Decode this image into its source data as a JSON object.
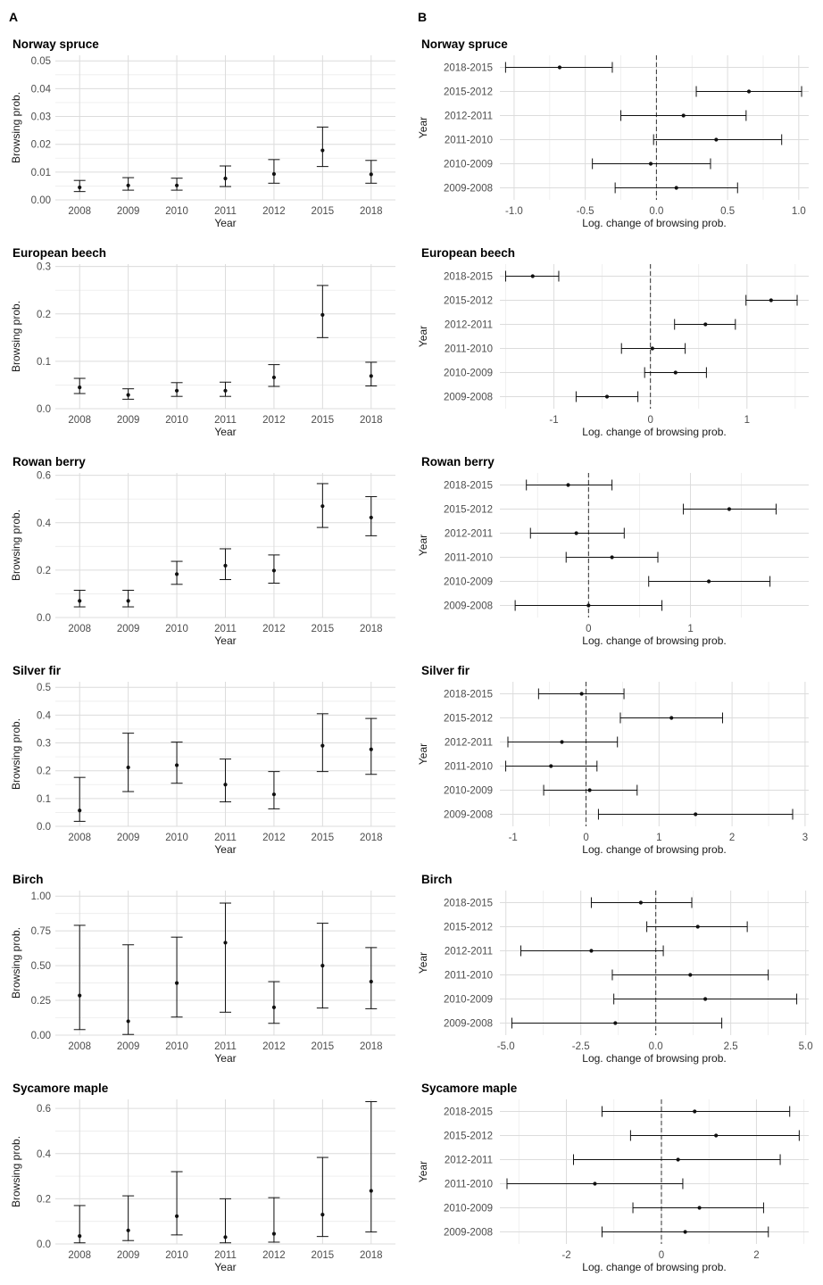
{
  "panel_labels": {
    "a": "A",
    "b": "B"
  },
  "chart_data": [
    {
      "panel": "A",
      "type": "scatter",
      "title": "Norway spruce",
      "xlabel": "Year",
      "ylabel": "Browsing prob.",
      "categories": [
        "2008",
        "2009",
        "2010",
        "2011",
        "2012",
        "2015",
        "2018"
      ],
      "ylim": [
        0,
        0.052
      ],
      "yticks": [
        0,
        0.01,
        0.02,
        0.03,
        0.04,
        0.05
      ],
      "ytick_labels": [
        "0.00",
        "0.01",
        "0.02",
        "0.03",
        "0.04",
        "0.05"
      ],
      "points": [
        {
          "est": 0.0045,
          "lo": 0.003,
          "hi": 0.007
        },
        {
          "est": 0.0052,
          "lo": 0.0035,
          "hi": 0.008
        },
        {
          "est": 0.0052,
          "lo": 0.0035,
          "hi": 0.0078
        },
        {
          "est": 0.0077,
          "lo": 0.0048,
          "hi": 0.0122
        },
        {
          "est": 0.0093,
          "lo": 0.006,
          "hi": 0.0145
        },
        {
          "est": 0.0178,
          "lo": 0.012,
          "hi": 0.0262
        },
        {
          "est": 0.0092,
          "lo": 0.006,
          "hi": 0.0142
        }
      ]
    },
    {
      "panel": "B",
      "type": "forest",
      "title": "Norway spruce",
      "xlabel": "Log. change of browsing prob.",
      "ylabel": "Year",
      "categories": [
        "2018-2015",
        "2015-2012",
        "2012-2011",
        "2011-2010",
        "2010-2009",
        "2009-2008"
      ],
      "xlim": [
        -1.1,
        1.07
      ],
      "xticks": [
        -1.0,
        -0.5,
        0.0,
        0.5,
        1.0
      ],
      "xtick_labels": [
        "-1.0",
        "-0.5",
        "0.0",
        "0.5",
        "1.0"
      ],
      "points": [
        {
          "est": -0.68,
          "lo": -1.06,
          "hi": -0.31
        },
        {
          "est": 0.65,
          "lo": 0.28,
          "hi": 1.02
        },
        {
          "est": 0.19,
          "lo": -0.25,
          "hi": 0.63
        },
        {
          "est": 0.42,
          "lo": -0.02,
          "hi": 0.88
        },
        {
          "est": -0.04,
          "lo": -0.45,
          "hi": 0.38
        },
        {
          "est": 0.14,
          "lo": -0.29,
          "hi": 0.57
        }
      ]
    },
    {
      "panel": "A",
      "type": "scatter",
      "title": "European beech",
      "xlabel": "Year",
      "ylabel": "Browsing prob.",
      "categories": [
        "2008",
        "2009",
        "2010",
        "2011",
        "2012",
        "2015",
        "2018"
      ],
      "ylim": [
        0,
        0.305
      ],
      "yticks": [
        0,
        0.1,
        0.2,
        0.3
      ],
      "ytick_labels": [
        "0.0",
        "0.1",
        "0.2",
        "0.3"
      ],
      "points": [
        {
          "est": 0.045,
          "lo": 0.032,
          "hi": 0.064
        },
        {
          "est": 0.029,
          "lo": 0.02,
          "hi": 0.042
        },
        {
          "est": 0.038,
          "lo": 0.026,
          "hi": 0.055
        },
        {
          "est": 0.038,
          "lo": 0.026,
          "hi": 0.056
        },
        {
          "est": 0.066,
          "lo": 0.047,
          "hi": 0.093
        },
        {
          "est": 0.198,
          "lo": 0.15,
          "hi": 0.26
        },
        {
          "est": 0.069,
          "lo": 0.048,
          "hi": 0.098
        }
      ]
    },
    {
      "panel": "B",
      "type": "forest",
      "title": "European beech",
      "xlabel": "Log. change of browsing prob.",
      "ylabel": "Year",
      "categories": [
        "2018-2015",
        "2015-2012",
        "2012-2011",
        "2011-2010",
        "2010-2009",
        "2009-2008"
      ],
      "xlim": [
        -1.56,
        1.64
      ],
      "xticks": [
        -1,
        0,
        1
      ],
      "xtick_labels": [
        "-1",
        "0",
        "1"
      ],
      "points": [
        {
          "est": -1.22,
          "lo": -1.5,
          "hi": -0.95
        },
        {
          "est": 1.25,
          "lo": 0.99,
          "hi": 1.52
        },
        {
          "est": 0.57,
          "lo": 0.25,
          "hi": 0.88
        },
        {
          "est": 0.02,
          "lo": -0.3,
          "hi": 0.36
        },
        {
          "est": 0.26,
          "lo": -0.06,
          "hi": 0.58
        },
        {
          "est": -0.45,
          "lo": -0.77,
          "hi": -0.13
        }
      ]
    },
    {
      "panel": "A",
      "type": "scatter",
      "title": "Rowan berry",
      "xlabel": "Year",
      "ylabel": "Browsing prob.",
      "categories": [
        "2008",
        "2009",
        "2010",
        "2011",
        "2012",
        "2015",
        "2018"
      ],
      "ylim": [
        0,
        0.61
      ],
      "yticks": [
        0,
        0.2,
        0.4,
        0.6
      ],
      "ytick_labels": [
        "0.0",
        "0.2",
        "0.4",
        "0.6"
      ],
      "points": [
        {
          "est": 0.07,
          "lo": 0.045,
          "hi": 0.115
        },
        {
          "est": 0.07,
          "lo": 0.045,
          "hi": 0.115
        },
        {
          "est": 0.183,
          "lo": 0.14,
          "hi": 0.237
        },
        {
          "est": 0.219,
          "lo": 0.16,
          "hi": 0.29
        },
        {
          "est": 0.198,
          "lo": 0.145,
          "hi": 0.264
        },
        {
          "est": 0.47,
          "lo": 0.38,
          "hi": 0.565
        },
        {
          "est": 0.422,
          "lo": 0.345,
          "hi": 0.51
        }
      ]
    },
    {
      "panel": "B",
      "type": "forest",
      "title": "Rowan berry",
      "xlabel": "Log. change of browsing prob.",
      "ylabel": "Year",
      "categories": [
        "2018-2015",
        "2015-2012",
        "2012-2011",
        "2011-2010",
        "2010-2009",
        "2009-2008"
      ],
      "xlim": [
        -0.87,
        2.16
      ],
      "xticks": [
        0,
        1
      ],
      "xtick_labels": [
        "0",
        "1"
      ],
      "points": [
        {
          "est": -0.2,
          "lo": -0.61,
          "hi": 0.23
        },
        {
          "est": 1.38,
          "lo": 0.93,
          "hi": 1.84
        },
        {
          "est": -0.12,
          "lo": -0.57,
          "hi": 0.35
        },
        {
          "est": 0.23,
          "lo": -0.22,
          "hi": 0.68
        },
        {
          "est": 1.18,
          "lo": 0.59,
          "hi": 1.78
        },
        {
          "est": 0.0,
          "lo": -0.72,
          "hi": 0.72
        }
      ]
    },
    {
      "panel": "A",
      "type": "scatter",
      "title": "Silver fir",
      "xlabel": "Year",
      "ylabel": "Browsing prob.",
      "categories": [
        "2008",
        "2009",
        "2010",
        "2011",
        "2012",
        "2015",
        "2018"
      ],
      "ylim": [
        0,
        0.52
      ],
      "yticks": [
        0,
        0.1,
        0.2,
        0.3,
        0.4,
        0.5
      ],
      "ytick_labels": [
        "0.0",
        "0.1",
        "0.2",
        "0.3",
        "0.4",
        "0.5"
      ],
      "points": [
        {
          "est": 0.057,
          "lo": 0.018,
          "hi": 0.176
        },
        {
          "est": 0.212,
          "lo": 0.125,
          "hi": 0.335
        },
        {
          "est": 0.22,
          "lo": 0.155,
          "hi": 0.303
        },
        {
          "est": 0.15,
          "lo": 0.088,
          "hi": 0.242
        },
        {
          "est": 0.115,
          "lo": 0.063,
          "hi": 0.197
        },
        {
          "est": 0.29,
          "lo": 0.197,
          "hi": 0.405
        },
        {
          "est": 0.277,
          "lo": 0.187,
          "hi": 0.388
        }
      ]
    },
    {
      "panel": "B",
      "type": "forest",
      "title": "Silver fir",
      "xlabel": "Log. change of browsing prob.",
      "ylabel": "Year",
      "categories": [
        "2018-2015",
        "2015-2012",
        "2012-2011",
        "2011-2010",
        "2010-2009",
        "2009-2008"
      ],
      "xlim": [
        -1.18,
        3.05
      ],
      "xticks": [
        -1,
        0,
        1,
        2,
        3
      ],
      "xtick_labels": [
        "-1",
        "0",
        "1",
        "2",
        "3"
      ],
      "points": [
        {
          "est": -0.06,
          "lo": -0.65,
          "hi": 0.52
        },
        {
          "est": 1.17,
          "lo": 0.47,
          "hi": 1.87
        },
        {
          "est": -0.33,
          "lo": -1.07,
          "hi": 0.43
        },
        {
          "est": -0.48,
          "lo": -1.1,
          "hi": 0.15
        },
        {
          "est": 0.05,
          "lo": -0.58,
          "hi": 0.7
        },
        {
          "est": 1.5,
          "lo": 0.17,
          "hi": 2.83
        }
      ]
    },
    {
      "panel": "A",
      "type": "scatter",
      "title": "Birch",
      "xlabel": "Year",
      "ylabel": "Browsing prob.",
      "categories": [
        "2008",
        "2009",
        "2010",
        "2011",
        "2012",
        "2015",
        "2018"
      ],
      "ylim": [
        0,
        1.04
      ],
      "yticks": [
        0,
        0.25,
        0.5,
        0.75,
        1.0
      ],
      "ytick_labels": [
        "0.00",
        "0.25",
        "0.50",
        "0.75",
        "1.00"
      ],
      "points": [
        {
          "est": 0.285,
          "lo": 0.04,
          "hi": 0.79
        },
        {
          "est": 0.1,
          "lo": 0.005,
          "hi": 0.65
        },
        {
          "est": 0.375,
          "lo": 0.13,
          "hi": 0.705
        },
        {
          "est": 0.665,
          "lo": 0.165,
          "hi": 0.95
        },
        {
          "est": 0.2,
          "lo": 0.085,
          "hi": 0.385
        },
        {
          "est": 0.5,
          "lo": 0.195,
          "hi": 0.805
        },
        {
          "est": 0.385,
          "lo": 0.19,
          "hi": 0.63
        }
      ]
    },
    {
      "panel": "B",
      "type": "forest",
      "title": "Birch",
      "xlabel": "Log. change of browsing prob.",
      "ylabel": "Year",
      "categories": [
        "2018-2015",
        "2015-2012",
        "2012-2011",
        "2011-2010",
        "2010-2009",
        "2009-2008"
      ],
      "xlim": [
        -5.2,
        5.1
      ],
      "xticks": [
        -5.0,
        -2.5,
        0.0,
        2.5,
        5.0
      ],
      "xtick_labels": [
        "-5.0",
        "-2.5",
        "0.0",
        "2.5",
        "5.0"
      ],
      "points": [
        {
          "est": -0.5,
          "lo": -2.15,
          "hi": 1.2
        },
        {
          "est": 1.4,
          "lo": -0.3,
          "hi": 3.05
        },
        {
          "est": -2.15,
          "lo": -4.5,
          "hi": 0.25
        },
        {
          "est": 1.15,
          "lo": -1.45,
          "hi": 3.75
        },
        {
          "est": 1.65,
          "lo": -1.4,
          "hi": 4.7
        },
        {
          "est": -1.35,
          "lo": -4.8,
          "hi": 2.2
        }
      ]
    },
    {
      "panel": "A",
      "type": "scatter",
      "title": "Sycamore maple",
      "xlabel": "Year",
      "ylabel": "Browsing prob.",
      "categories": [
        "2008",
        "2009",
        "2010",
        "2011",
        "2012",
        "2015",
        "2018"
      ],
      "ylim": [
        0,
        0.64
      ],
      "yticks": [
        0,
        0.2,
        0.4,
        0.6
      ],
      "ytick_labels": [
        "0.0",
        "0.2",
        "0.4",
        "0.6"
      ],
      "points": [
        {
          "est": 0.035,
          "lo": 0.005,
          "hi": 0.17
        },
        {
          "est": 0.06,
          "lo": 0.015,
          "hi": 0.213
        },
        {
          "est": 0.123,
          "lo": 0.04,
          "hi": 0.32
        },
        {
          "est": 0.03,
          "lo": 0.005,
          "hi": 0.2
        },
        {
          "est": 0.045,
          "lo": 0.008,
          "hi": 0.205
        },
        {
          "est": 0.13,
          "lo": 0.033,
          "hi": 0.383
        },
        {
          "est": 0.235,
          "lo": 0.053,
          "hi": 0.63
        }
      ]
    },
    {
      "panel": "B",
      "type": "forest",
      "title": "Sycamore maple",
      "xlabel": "Log. change of browsing prob.",
      "ylabel": "Year",
      "categories": [
        "2018-2015",
        "2015-2012",
        "2012-2011",
        "2011-2010",
        "2010-2009",
        "2009-2008"
      ],
      "xlim": [
        -3.4,
        3.1
      ],
      "xticks": [
        -2,
        0,
        2
      ],
      "xtick_labels": [
        "-2",
        "0",
        "2"
      ],
      "points": [
        {
          "est": 0.7,
          "lo": -1.25,
          "hi": 2.7
        },
        {
          "est": 1.15,
          "lo": -0.65,
          "hi": 2.9
        },
        {
          "est": 0.35,
          "lo": -1.85,
          "hi": 2.5
        },
        {
          "est": -1.4,
          "lo": -3.25,
          "hi": 0.45
        },
        {
          "est": 0.8,
          "lo": -0.6,
          "hi": 2.15
        },
        {
          "est": 0.5,
          "lo": -1.25,
          "hi": 2.25
        }
      ]
    }
  ]
}
